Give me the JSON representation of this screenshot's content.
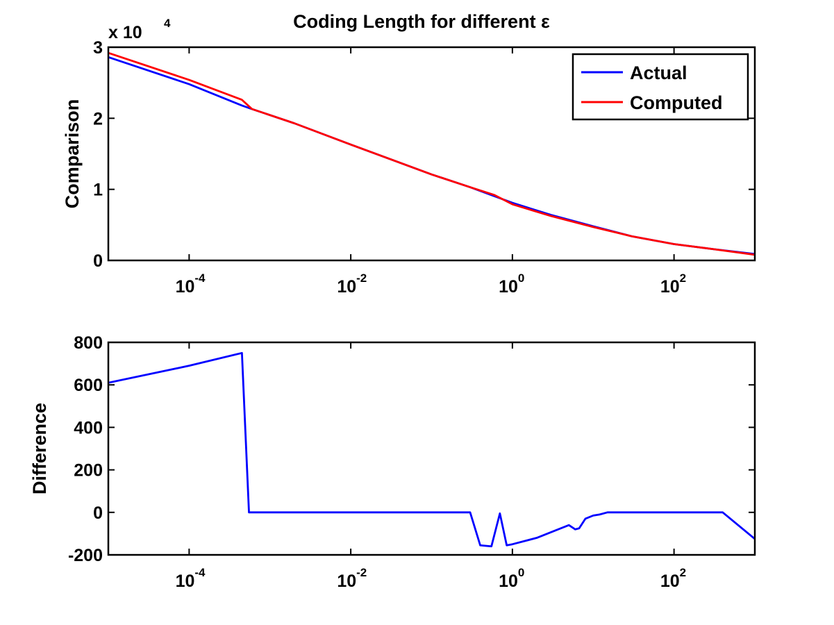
{
  "chart_data": [
    {
      "type": "line",
      "title": "Coding Length for different ε",
      "xlabel": "",
      "ylabel": "Comparison",
      "xscale": "log",
      "xlim": [
        1e-05,
        1000
      ],
      "ylim": [
        0,
        30000
      ],
      "y_multiplier_label": "x 10",
      "y_multiplier_exp": "4",
      "xticks": [
        {
          "value": 0.0001,
          "base": "10",
          "exp": "-4"
        },
        {
          "value": 0.01,
          "base": "10",
          "exp": "-2"
        },
        {
          "value": 1,
          "base": "10",
          "exp": "0"
        },
        {
          "value": 100,
          "base": "10",
          "exp": "2"
        }
      ],
      "yticks": [
        {
          "value": 0,
          "label": "0"
        },
        {
          "value": 10000,
          "label": "1"
        },
        {
          "value": 20000,
          "label": "2"
        },
        {
          "value": 30000,
          "label": "3"
        }
      ],
      "legend": {
        "position": "top-right"
      },
      "series": [
        {
          "name": "Actual",
          "color": "#0000ff",
          "x": [
            1e-05,
            0.0001,
            0.00045,
            0.0006,
            0.002,
            0.01,
            0.03,
            0.1,
            0.3,
            1,
            3,
            10,
            30,
            100,
            300,
            1000
          ],
          "y": [
            28600,
            24800,
            21800,
            21300,
            19300,
            16300,
            14300,
            12100,
            10300,
            8100,
            6400,
            4800,
            3400,
            2300,
            1600,
            900
          ]
        },
        {
          "name": "Computed",
          "color": "#ff0000",
          "x": [
            1e-05,
            0.0001,
            0.00045,
            0.0006,
            0.002,
            0.01,
            0.03,
            0.1,
            0.3,
            0.6,
            1,
            3,
            10,
            30,
            100,
            300,
            1000
          ],
          "y": [
            29200,
            25400,
            22600,
            21300,
            19300,
            16300,
            14300,
            12100,
            10300,
            9200,
            7900,
            6250,
            4700,
            3400,
            2300,
            1600,
            800
          ]
        }
      ]
    },
    {
      "type": "line",
      "title": "",
      "xlabel": "",
      "ylabel": "Difference",
      "xscale": "log",
      "xlim": [
        1e-05,
        1000
      ],
      "ylim": [
        -200,
        800
      ],
      "xticks": [
        {
          "value": 0.0001,
          "base": "10",
          "exp": "-4"
        },
        {
          "value": 0.01,
          "base": "10",
          "exp": "-2"
        },
        {
          "value": 1,
          "base": "10",
          "exp": "0"
        },
        {
          "value": 100,
          "base": "10",
          "exp": "2"
        }
      ],
      "yticks": [
        {
          "value": -200,
          "label": "-200"
        },
        {
          "value": 0,
          "label": "0"
        },
        {
          "value": 200,
          "label": "200"
        },
        {
          "value": 400,
          "label": "400"
        },
        {
          "value": 600,
          "label": "600"
        },
        {
          "value": 800,
          "label": "800"
        }
      ],
      "series": [
        {
          "color": "#0000ff",
          "x": [
            1e-05,
            0.0001,
            0.00045,
            0.00055,
            0.001,
            0.01,
            0.1,
            0.3,
            0.4,
            0.55,
            0.7,
            0.85,
            1,
            2,
            5,
            6,
            6.7,
            8,
            10,
            12,
            15,
            30,
            100,
            400,
            1000
          ],
          "y": [
            610,
            690,
            750,
            0,
            0,
            0,
            0,
            0,
            -155,
            -160,
            -5,
            -155,
            -150,
            -120,
            -60,
            -80,
            -75,
            -30,
            -15,
            -10,
            0,
            0,
            0,
            0,
            -125
          ]
        }
      ]
    }
  ]
}
